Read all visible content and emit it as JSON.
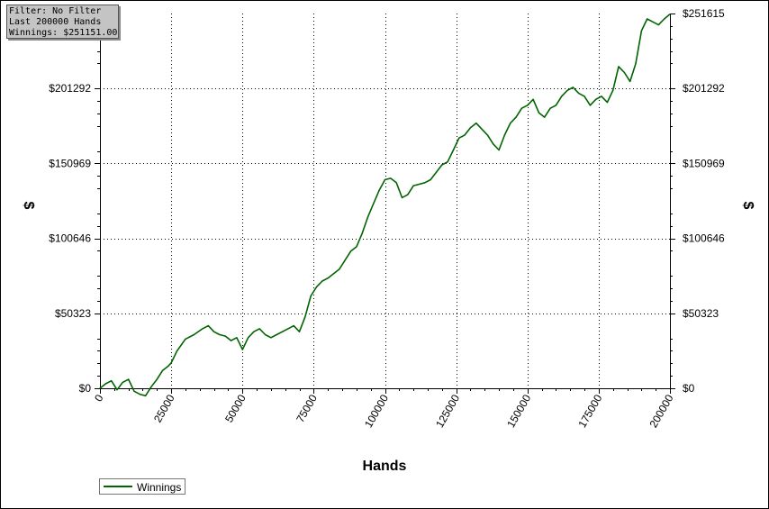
{
  "info": {
    "filter": "Filter: No Filter",
    "last": "Last  200000 Hands",
    "winnings": "Winnings: $251151.00"
  },
  "legend": {
    "label": "Winnings"
  },
  "colors": {
    "series": "#006400",
    "grid": "#000000"
  },
  "chart_data": {
    "type": "line",
    "title": "",
    "xlabel": "Hands",
    "ylabel": "$",
    "xlim": [
      0,
      200000
    ],
    "ylim": [
      0,
      251615
    ],
    "x_ticks": [
      0,
      25000,
      50000,
      75000,
      100000,
      125000,
      150000,
      175000,
      200000
    ],
    "x_tick_labels": [
      "0",
      "25000",
      "50000",
      "75000",
      "100000",
      "125000",
      "150000",
      "175000",
      "200000"
    ],
    "y_ticks": [
      0,
      50323,
      100646,
      150969,
      201292,
      251615
    ],
    "y_tick_labels": [
      "$0",
      "$50323",
      "$100646",
      "$150969",
      "$201292",
      "$251615"
    ],
    "grid": true,
    "legend_position": "bottom-left",
    "series": [
      {
        "name": "Winnings",
        "color": "#006400",
        "x": [
          0,
          2000,
          4000,
          6000,
          8000,
          10000,
          12000,
          14000,
          16000,
          18000,
          20000,
          22000,
          24000,
          25000,
          27000,
          30000,
          33000,
          36000,
          38000,
          40000,
          42000,
          44000,
          46000,
          48000,
          50000,
          52000,
          54000,
          56000,
          58000,
          60000,
          62000,
          64000,
          66000,
          68000,
          70000,
          72000,
          74000,
          76000,
          78000,
          80000,
          82000,
          84000,
          86000,
          88000,
          90000,
          92000,
          94000,
          96000,
          98000,
          100000,
          102000,
          104000,
          106000,
          108000,
          110000,
          112000,
          114000,
          116000,
          118000,
          120000,
          122000,
          124000,
          126000,
          128000,
          130000,
          132000,
          134000,
          136000,
          138000,
          140000,
          142000,
          144000,
          146000,
          148000,
          150000,
          152000,
          154000,
          156000,
          158000,
          160000,
          162000,
          164000,
          166000,
          168000,
          170000,
          172000,
          174000,
          176000,
          178000,
          180000,
          182000,
          184000,
          186000,
          188000,
          190000,
          192000,
          194000,
          196000,
          198000,
          200000
        ],
        "y": [
          0,
          3000,
          5000,
          -1000,
          4000,
          6000,
          -2000,
          -4000,
          -5000,
          1000,
          6000,
          12000,
          15000,
          17000,
          25000,
          33000,
          36000,
          40000,
          42000,
          38000,
          36000,
          35000,
          32000,
          34000,
          26000,
          34000,
          38000,
          40000,
          36000,
          34000,
          36000,
          38000,
          40000,
          42000,
          38000,
          48000,
          62000,
          68000,
          72000,
          74000,
          77000,
          80000,
          86000,
          92000,
          95000,
          104000,
          115000,
          124000,
          133000,
          140000,
          141000,
          138000,
          128000,
          130000,
          136000,
          137000,
          138000,
          140000,
          145000,
          150000,
          152000,
          160000,
          168000,
          170000,
          175000,
          178000,
          174000,
          170000,
          164000,
          160000,
          170000,
          178000,
          182000,
          188000,
          190000,
          194000,
          185000,
          182000,
          188000,
          190000,
          196000,
          200000,
          202000,
          198000,
          196000,
          190000,
          194000,
          196000,
          192000,
          200000,
          216000,
          212000,
          206000,
          218000,
          240000,
          248000,
          246000,
          244000,
          248000,
          251151
        ]
      }
    ]
  }
}
